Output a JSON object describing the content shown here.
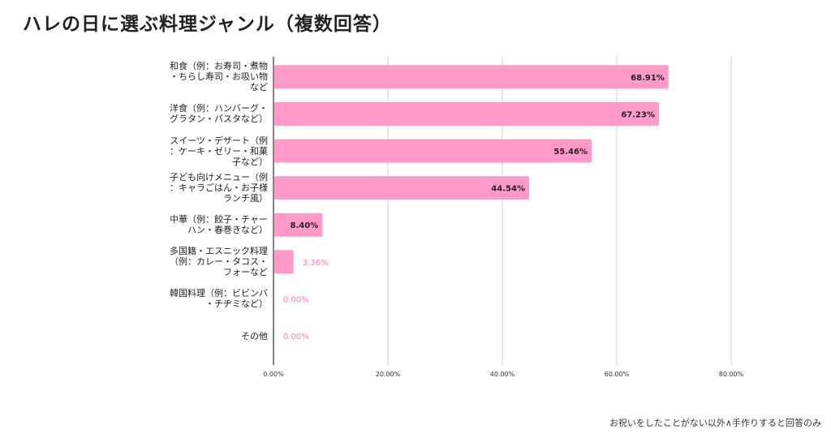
{
  "title": "ハレの日に選ぶ料理ジャンル（複数回答）",
  "footnote": "お祝いをしたことがない以外∧手作りすると回答のみ",
  "colors": {
    "bar": "#ff99c8",
    "label_inside": "#222222",
    "label_outside": "#ff7fb8",
    "grid": "#d0d0d0",
    "axis": "#333333"
  },
  "chart_data": {
    "type": "bar",
    "orientation": "horizontal",
    "title": "ハレの日に選ぶ料理ジャンル（複数回答）",
    "categories": [
      [
        "和食（例：お寿司・煮物",
        "・ちらし寿司・お吸い物",
        "など"
      ],
      [
        "洋食（例：ハンバーグ・",
        "グラタン・パスタなど）"
      ],
      [
        "スイーツ・デザート（例",
        "：ケーキ・ゼリー・和菓",
        "子など）"
      ],
      [
        "子ども向けメニュー（例",
        "：キャラごはん・お子様",
        "ランチ風）"
      ],
      [
        "中華（例：餃子・チャー",
        "ハン・春巻きなど）"
      ],
      [
        "多国籍・エスニック料理",
        "（例：カレー・タコス・",
        "フォーなど"
      ],
      [
        "韓国料理（例：ビビンバ",
        "・チヂミなど）"
      ],
      [
        "その他"
      ]
    ],
    "values": [
      68.91,
      67.23,
      55.46,
      44.54,
      8.4,
      3.36,
      0.0,
      0.0
    ],
    "value_labels": [
      "68.91%",
      "67.23%",
      "55.46%",
      "44.54%",
      "8.40%",
      "3.36%",
      "0.00%",
      "0.00%"
    ],
    "xlim": [
      0,
      80
    ],
    "xticks": [
      0,
      20,
      40,
      60,
      80
    ],
    "xtick_labels": [
      "0.00%",
      "20.00%",
      "40.00%",
      "60.00%",
      "80.00%"
    ],
    "grid": true,
    "legend": "none"
  }
}
